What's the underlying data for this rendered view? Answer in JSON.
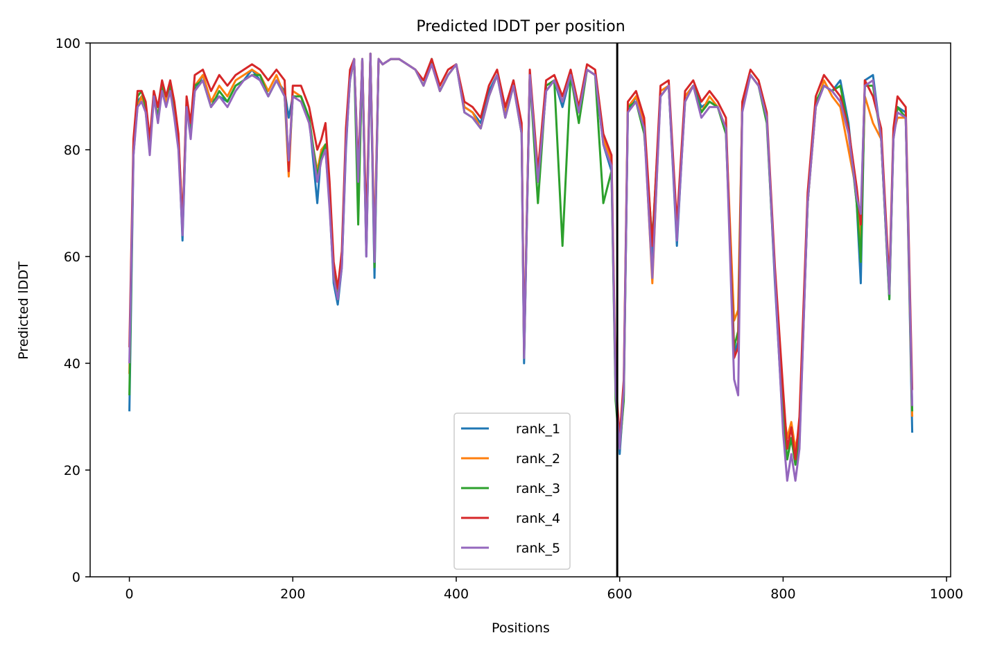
{
  "chart_data": {
    "type": "line",
    "title": "Predicted lDDT per position",
    "xlabel": "Positions",
    "ylabel": "Predicted lDDT",
    "xlim": [
      -48,
      1005
    ],
    "ylim": [
      0,
      100
    ],
    "xticks": [
      0,
      200,
      400,
      600,
      800,
      1000
    ],
    "yticks": [
      0,
      20,
      40,
      60,
      80,
      100
    ],
    "grid": false,
    "legend_position": "bottom-center",
    "vline_x": 597,
    "series_x": [
      0,
      5,
      10,
      15,
      20,
      25,
      30,
      35,
      40,
      45,
      50,
      55,
      60,
      65,
      70,
      75,
      80,
      90,
      100,
      110,
      120,
      130,
      140,
      150,
      160,
      170,
      180,
      190,
      195,
      200,
      210,
      220,
      230,
      235,
      240,
      245,
      250,
      255,
      260,
      265,
      270,
      275,
      280,
      285,
      290,
      295,
      300,
      305,
      310,
      320,
      330,
      340,
      350,
      360,
      370,
      380,
      390,
      400,
      410,
      420,
      430,
      440,
      450,
      460,
      470,
      480,
      483,
      490,
      500,
      510,
      520,
      530,
      540,
      550,
      560,
      570,
      580,
      590,
      595,
      600,
      605,
      610,
      620,
      630,
      640,
      650,
      660,
      670,
      680,
      690,
      700,
      710,
      720,
      730,
      740,
      745,
      750,
      760,
      770,
      780,
      790,
      800,
      805,
      810,
      815,
      820,
      830,
      840,
      850,
      860,
      870,
      880,
      890,
      895,
      900,
      910,
      920,
      930,
      935,
      940,
      950,
      958
    ],
    "series": [
      {
        "name": "rank_1",
        "color": "#1f77b4",
        "values": [
          31,
          79,
          89,
          90,
          88,
          80,
          90,
          86,
          91,
          89,
          92,
          88,
          82,
          63,
          88,
          83,
          91,
          94,
          89,
          90,
          89,
          92,
          93,
          95,
          93,
          90,
          93,
          91,
          86,
          90,
          90,
          86,
          70,
          80,
          80,
          70,
          55,
          51,
          58,
          80,
          94,
          97,
          75,
          97,
          60,
          98,
          56,
          97,
          96,
          97,
          97,
          96,
          95,
          92,
          97,
          91,
          94,
          96,
          88,
          87,
          85,
          91,
          94,
          87,
          93,
          83,
          40,
          94,
          74,
          91,
          93,
          88,
          94,
          88,
          95,
          94,
          81,
          76,
          35,
          23,
          34,
          87,
          90,
          84,
          60,
          90,
          92,
          62,
          90,
          92,
          88,
          89,
          88,
          84,
          42,
          44,
          88,
          94,
          92,
          86,
          55,
          28,
          22,
          26,
          22,
          26,
          70,
          88,
          92,
          91,
          93,
          85,
          70,
          55,
          93,
          94,
          82,
          52,
          83,
          88,
          87,
          27
        ]
      },
      {
        "name": "rank_2",
        "color": "#ff7f0e",
        "values": [
          38,
          80,
          88,
          90,
          87,
          80,
          91,
          86,
          92,
          89,
          91,
          87,
          81,
          65,
          89,
          83,
          92,
          94,
          89,
          92,
          90,
          93,
          94,
          95,
          94,
          91,
          94,
          90,
          75,
          91,
          90,
          85,
          76,
          80,
          81,
          72,
          58,
          53,
          60,
          82,
          94,
          97,
          74,
          97,
          62,
          98,
          62,
          97,
          96,
          97,
          97,
          96,
          95,
          92,
          96,
          91,
          94,
          96,
          88,
          87,
          84,
          90,
          94,
          87,
          92,
          84,
          43,
          94,
          75,
          92,
          93,
          89,
          94,
          87,
          95,
          94,
          82,
          78,
          36,
          26,
          36,
          88,
          90,
          85,
          55,
          91,
          92,
          65,
          90,
          92,
          87,
          90,
          88,
          84,
          48,
          50,
          88,
          94,
          92,
          86,
          57,
          32,
          26,
          29,
          24,
          28,
          70,
          88,
          93,
          90,
          88,
          80,
          72,
          63,
          90,
          85,
          82,
          53,
          83,
          86,
          86,
          30
        ]
      },
      {
        "name": "rank_3",
        "color": "#2ca02c",
        "values": [
          34,
          81,
          90,
          91,
          88,
          81,
          90,
          86,
          92,
          90,
          92,
          87,
          82,
          66,
          89,
          84,
          92,
          93,
          88,
          91,
          89,
          92,
          93,
          94,
          94,
          90,
          93,
          90,
          77,
          90,
          90,
          86,
          75,
          79,
          81,
          71,
          57,
          52,
          59,
          82,
          93,
          97,
          66,
          97,
          61,
          98,
          58,
          97,
          96,
          97,
          97,
          96,
          95,
          92,
          97,
          91,
          94,
          96,
          87,
          86,
          84,
          90,
          94,
          86,
          92,
          83,
          41,
          94,
          70,
          92,
          93,
          62,
          94,
          85,
          95,
          94,
          70,
          76,
          33,
          24,
          33,
          88,
          89,
          83,
          63,
          90,
          92,
          64,
          89,
          92,
          87,
          89,
          88,
          83,
          43,
          46,
          88,
          94,
          92,
          85,
          56,
          30,
          22,
          26,
          21,
          25,
          70,
          89,
          92,
          91,
          92,
          84,
          70,
          59,
          92,
          92,
          82,
          52,
          82,
          88,
          86,
          31
        ]
      },
      {
        "name": "rank_4",
        "color": "#d62728",
        "values": [
          43,
          82,
          91,
          91,
          89,
          82,
          91,
          88,
          93,
          90,
          93,
          89,
          83,
          66,
          90,
          85,
          94,
          95,
          91,
          94,
          92,
          94,
          95,
          96,
          95,
          93,
          95,
          93,
          76,
          92,
          92,
          88,
          80,
          82,
          85,
          74,
          59,
          54,
          61,
          84,
          95,
          97,
          76,
          97,
          65,
          98,
          60,
          97,
          96,
          97,
          97,
          96,
          95,
          93,
          97,
          92,
          95,
          96,
          89,
          88,
          86,
          92,
          95,
          88,
          93,
          85,
          42,
          95,
          76,
          93,
          94,
          90,
          95,
          88,
          96,
          95,
          83,
          79,
          37,
          26,
          37,
          89,
          91,
          86,
          62,
          92,
          93,
          66,
          91,
          93,
          89,
          91,
          89,
          86,
          41,
          43,
          89,
          95,
          93,
          87,
          58,
          35,
          24,
          28,
          22,
          30,
          72,
          90,
          94,
          92,
          90,
          84,
          73,
          66,
          93,
          90,
          84,
          55,
          84,
          90,
          88,
          35
        ]
      },
      {
        "name": "rank_5",
        "color": "#9467bd",
        "values": [
          40,
          79,
          88,
          89,
          87,
          79,
          90,
          85,
          91,
          88,
          91,
          86,
          80,
          64,
          88,
          82,
          91,
          93,
          88,
          90,
          88,
          91,
          93,
          94,
          93,
          90,
          93,
          90,
          78,
          90,
          89,
          85,
          74,
          78,
          80,
          69,
          56,
          52,
          58,
          81,
          93,
          97,
          74,
          97,
          60,
          98,
          59,
          97,
          96,
          97,
          97,
          96,
          95,
          92,
          96,
          91,
          94,
          96,
          87,
          86,
          84,
          90,
          94,
          86,
          92,
          83,
          41,
          94,
          74,
          91,
          93,
          89,
          94,
          87,
          95,
          94,
          81,
          77,
          35,
          24,
          35,
          87,
          89,
          84,
          56,
          90,
          92,
          63,
          89,
          92,
          86,
          88,
          88,
          84,
          37,
          34,
          87,
          94,
          92,
          86,
          56,
          27,
          18,
          23,
          18,
          24,
          70,
          88,
          92,
          91,
          89,
          83,
          71,
          68,
          92,
          93,
          82,
          53,
          82,
          87,
          86,
          32
        ]
      }
    ]
  }
}
